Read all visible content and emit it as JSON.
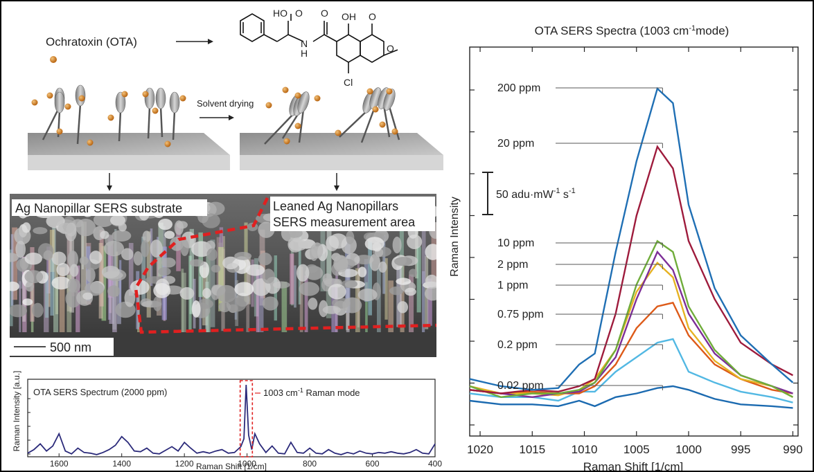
{
  "schematic": {
    "ota_label": "Ochratoxin (OTA)",
    "molecule_labels": [
      "HO",
      "O",
      "N",
      "H",
      "O",
      "OH",
      "O",
      "O",
      "Cl"
    ],
    "solvent_label": "Solvent drying"
  },
  "sem": {
    "left_label": "Ag Nanopillar SERS substrate",
    "right_label_line1": "Leaned Ag Nanopillars",
    "right_label_line2": "SERS measurement area",
    "scale_label": "500 nm"
  },
  "colors": {
    "bead": "#d4801d",
    "pillar": "#9a9a9a",
    "dashed": "#e02020",
    "small_spectrum": "#2b2a7a"
  },
  "chart_data": [
    {
      "type": "line",
      "title": "OTA SERS Spectrum (2000 ppm)",
      "xlabel": "Raman Shift [1/cm]",
      "ylabel": "Raman Intensity [a.u.]",
      "annotation": "1003 cm-1 Raman mode",
      "xlim": [
        1700,
        400
      ],
      "x_reversed": true,
      "ylim": [
        0,
        1
      ],
      "xticks": [
        1600,
        1400,
        1200,
        1000,
        800,
        600,
        400
      ],
      "x": [
        1700,
        1680,
        1660,
        1640,
        1620,
        1600,
        1580,
        1560,
        1540,
        1520,
        1500,
        1480,
        1460,
        1440,
        1420,
        1400,
        1380,
        1360,
        1340,
        1320,
        1300,
        1280,
        1260,
        1240,
        1220,
        1200,
        1180,
        1160,
        1140,
        1120,
        1100,
        1080,
        1060,
        1040,
        1030,
        1020,
        1010,
        1003,
        995,
        985,
        975,
        960,
        940,
        920,
        900,
        880,
        860,
        840,
        820,
        800,
        780,
        760,
        740,
        720,
        700,
        680,
        660,
        640,
        620,
        600,
        580,
        560,
        540,
        520,
        500,
        480,
        460,
        440,
        420,
        400
      ],
      "y": [
        0.05,
        0.1,
        0.18,
        0.08,
        0.15,
        0.32,
        0.08,
        0.04,
        0.12,
        0.06,
        0.05,
        0.03,
        0.06,
        0.1,
        0.16,
        0.28,
        0.2,
        0.08,
        0.07,
        0.12,
        0.05,
        0.04,
        0.09,
        0.14,
        0.08,
        0.2,
        0.12,
        0.05,
        0.07,
        0.05,
        0.08,
        0.1,
        0.05,
        0.06,
        0.1,
        0.14,
        0.25,
        1.0,
        0.3,
        0.1,
        0.32,
        0.18,
        0.06,
        0.15,
        0.05,
        0.04,
        0.2,
        0.06,
        0.05,
        0.12,
        0.05,
        0.04,
        0.1,
        0.05,
        0.03,
        0.06,
        0.04,
        0.08,
        0.05,
        0.04,
        0.06,
        0.05,
        0.07,
        0.05,
        0.04,
        0.06,
        0.1,
        0.05,
        0.04,
        0.18
      ]
    },
    {
      "type": "line",
      "title": "OTA SERS Spectra (1003 cm-1mode)",
      "xlabel": "Raman Shift [1/cm]",
      "ylabel": "Raman Intensity",
      "scale_bar": "50 adu·mW-1 s-1",
      "xlim": [
        1021,
        989.5
      ],
      "x_reversed": true,
      "ylim": [
        0,
        100
      ],
      "xticks": [
        1020,
        1015,
        1010,
        1005,
        1000,
        995,
        990
      ],
      "x": [
        1021,
        1018,
        1015,
        1012.5,
        1010.5,
        1009,
        1007,
        1005,
        1003,
        1001.5,
        1000,
        997.5,
        995,
        992,
        990
      ],
      "series": [
        {
          "name": "200 ppm",
          "color": "#1f6fb4",
          "values": [
            10,
            8,
            7,
            7.5,
            14,
            17,
            45,
            70,
            90,
            86,
            58,
            35,
            22,
            14,
            9
          ]
        },
        {
          "name": "20 ppm",
          "color": "#9e1b3c",
          "values": [
            7,
            6,
            7,
            6.5,
            8,
            10,
            28,
            55,
            74,
            68,
            48,
            32,
            20,
            14,
            11
          ]
        },
        {
          "name": "10 ppm",
          "color": "#6fac3a",
          "values": [
            8,
            5,
            6,
            6,
            7,
            9,
            18,
            36,
            48,
            45,
            30,
            18,
            11,
            8,
            5
          ]
        },
        {
          "name": "2 ppm",
          "color": "#7d2e97",
          "values": [
            7,
            6,
            5,
            6,
            6.5,
            9,
            16,
            32,
            45,
            40,
            28,
            17,
            11,
            8,
            6
          ]
        },
        {
          "name": "1 ppm",
          "color": "#e6b222",
          "values": [
            8,
            6,
            6,
            5.5,
            7,
            10,
            18,
            34,
            42,
            38,
            24,
            15,
            10,
            8,
            5
          ]
        },
        {
          "name": "0.75 ppm",
          "color": "#dd5a18",
          "values": [
            7,
            6,
            6.5,
            6,
            6,
            8,
            14,
            24,
            30,
            31,
            22,
            14,
            10,
            7,
            6
          ]
        },
        {
          "name": "0.2 ppm",
          "color": "#52b8e3",
          "values": [
            6,
            5,
            5,
            4,
            6.5,
            6.5,
            12,
            16,
            20,
            21,
            12,
            9,
            6.5,
            5,
            3.5
          ]
        },
        {
          "name": "0.02 ppm",
          "color": "#1b6ab0",
          "values": [
            4,
            3,
            3,
            2.5,
            4,
            2.5,
            5,
            6,
            7.5,
            8,
            7,
            4.5,
            3,
            2.5,
            2
          ]
        }
      ]
    }
  ]
}
